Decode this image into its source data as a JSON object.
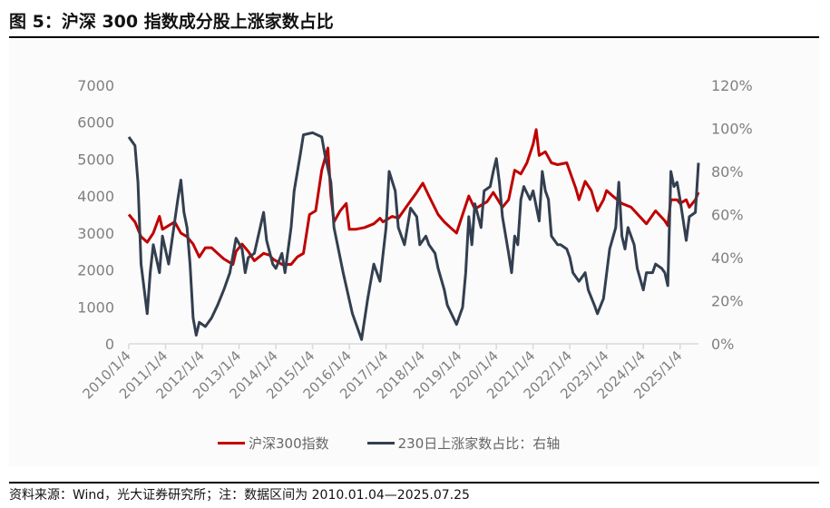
{
  "title": "图 5：沪深 300 指数成分股上涨家数占比",
  "footer": "资料来源：Wind，光大证券研究所；注：数据区间为 2010.01.04—2025.07.25",
  "chart_data": {
    "type": "line",
    "title": "",
    "left_axis": {
      "ylim": [
        0,
        7000
      ],
      "ticks": [
        "0",
        "1000",
        "2000",
        "3000",
        "4000",
        "5000",
        "6000",
        "7000"
      ]
    },
    "right_axis": {
      "ylim": [
        0,
        120
      ],
      "ticks": [
        "0%",
        "20%",
        "40%",
        "60%",
        "80%",
        "100%",
        "120%"
      ]
    },
    "x_range": [
      "2010-01",
      "2025-07"
    ],
    "x_ticks": [
      "2010/1/4",
      "2011/1/4",
      "2012/1/4",
      "2013/1/4",
      "2014/1/4",
      "2015/1/4",
      "2016/1/4",
      "2017/1/4",
      "2018/1/4",
      "2019/1/4",
      "2020/1/4",
      "2021/1/4",
      "2022/1/4",
      "2023/1/4",
      "2024/1/4",
      "2025/1/4"
    ],
    "grid": false,
    "legend_position": "bottom",
    "series": [
      {
        "name": "沪深300指数",
        "axis": "left",
        "color": "#c00000",
        "points": [
          [
            "2010-01",
            3500
          ],
          [
            "2010-03",
            3300
          ],
          [
            "2010-05",
            2900
          ],
          [
            "2010-07",
            2750
          ],
          [
            "2010-09",
            3000
          ],
          [
            "2010-11",
            3450
          ],
          [
            "2010-12",
            3100
          ],
          [
            "2011-02",
            3200
          ],
          [
            "2011-04",
            3300
          ],
          [
            "2011-06",
            3000
          ],
          [
            "2011-08",
            2900
          ],
          [
            "2011-10",
            2700
          ],
          [
            "2011-12",
            2350
          ],
          [
            "2012-02",
            2600
          ],
          [
            "2012-04",
            2600
          ],
          [
            "2012-06",
            2450
          ],
          [
            "2012-08",
            2300
          ],
          [
            "2012-11",
            2150
          ],
          [
            "2012-12",
            2500
          ],
          [
            "2013-02",
            2700
          ],
          [
            "2013-04",
            2500
          ],
          [
            "2013-06",
            2250
          ],
          [
            "2013-09",
            2450
          ],
          [
            "2013-11",
            2400
          ],
          [
            "2013-12",
            2300
          ],
          [
            "2014-03",
            2150
          ],
          [
            "2014-06",
            2150
          ],
          [
            "2014-08",
            2350
          ],
          [
            "2014-10",
            2450
          ],
          [
            "2014-12",
            3500
          ],
          [
            "2015-02",
            3600
          ],
          [
            "2015-04",
            4700
          ],
          [
            "2015-06",
            5300
          ],
          [
            "2015-07",
            4000
          ],
          [
            "2015-08",
            3300
          ],
          [
            "2015-10",
            3600
          ],
          [
            "2015-12",
            3800
          ],
          [
            "2016-01",
            3100
          ],
          [
            "2016-03",
            3100
          ],
          [
            "2016-06",
            3150
          ],
          [
            "2016-09",
            3250
          ],
          [
            "2016-11",
            3400
          ],
          [
            "2016-12",
            3300
          ],
          [
            "2017-03",
            3450
          ],
          [
            "2017-05",
            3400
          ],
          [
            "2017-08",
            3750
          ],
          [
            "2017-11",
            4100
          ],
          [
            "2018-01",
            4350
          ],
          [
            "2018-03",
            4000
          ],
          [
            "2018-06",
            3500
          ],
          [
            "2018-08",
            3300
          ],
          [
            "2018-10",
            3150
          ],
          [
            "2018-12",
            3000
          ],
          [
            "2019-02",
            3500
          ],
          [
            "2019-04",
            4000
          ],
          [
            "2019-06",
            3650
          ],
          [
            "2019-08",
            3750
          ],
          [
            "2019-10",
            3850
          ],
          [
            "2019-12",
            4100
          ],
          [
            "2020-03",
            3700
          ],
          [
            "2020-05",
            3900
          ],
          [
            "2020-07",
            4700
          ],
          [
            "2020-09",
            4600
          ],
          [
            "2020-11",
            4900
          ],
          [
            "2021-01",
            5400
          ],
          [
            "2021-02",
            5800
          ],
          [
            "2021-03",
            5100
          ],
          [
            "2021-05",
            5200
          ],
          [
            "2021-07",
            4900
          ],
          [
            "2021-09",
            4850
          ],
          [
            "2021-12",
            4900
          ],
          [
            "2022-03",
            4200
          ],
          [
            "2022-04",
            3900
          ],
          [
            "2022-06",
            4400
          ],
          [
            "2022-08",
            4150
          ],
          [
            "2022-10",
            3600
          ],
          [
            "2022-12",
            3900
          ],
          [
            "2023-01",
            4150
          ],
          [
            "2023-03",
            4000
          ],
          [
            "2023-06",
            3800
          ],
          [
            "2023-09",
            3700
          ],
          [
            "2023-12",
            3430
          ],
          [
            "2024-02",
            3250
          ],
          [
            "2024-05",
            3600
          ],
          [
            "2024-08",
            3330
          ],
          [
            "2024-09",
            3200
          ],
          [
            "2024-10",
            3900
          ],
          [
            "2024-12",
            3900
          ],
          [
            "2025-01",
            3800
          ],
          [
            "2025-03",
            3900
          ],
          [
            "2025-04",
            3700
          ],
          [
            "2025-06",
            3900
          ],
          [
            "2025-07",
            4100
          ]
        ]
      },
      {
        "name": "230日上涨家数占比：右轴",
        "axis": "right",
        "color": "#333f50",
        "points": [
          [
            "2010-01",
            96
          ],
          [
            "2010-03",
            92
          ],
          [
            "2010-04",
            75
          ],
          [
            "2010-05",
            37
          ],
          [
            "2010-07",
            14
          ],
          [
            "2010-08",
            33
          ],
          [
            "2010-09",
            46
          ],
          [
            "2010-11",
            33
          ],
          [
            "2010-12",
            50
          ],
          [
            "2011-02",
            37
          ],
          [
            "2011-05",
            67
          ],
          [
            "2011-06",
            76
          ],
          [
            "2011-07",
            61
          ],
          [
            "2011-08",
            54
          ],
          [
            "2011-09",
            37
          ],
          [
            "2011-10",
            12
          ],
          [
            "2011-11",
            4
          ],
          [
            "2011-12",
            10
          ],
          [
            "2012-02",
            8
          ],
          [
            "2012-04",
            12
          ],
          [
            "2012-06",
            18
          ],
          [
            "2012-08",
            25
          ],
          [
            "2012-10",
            33
          ],
          [
            "2012-12",
            49
          ],
          [
            "2013-02",
            44
          ],
          [
            "2013-03",
            33
          ],
          [
            "2013-04",
            40
          ],
          [
            "2013-06",
            42
          ],
          [
            "2013-09",
            61
          ],
          [
            "2013-10",
            48
          ],
          [
            "2013-12",
            37
          ],
          [
            "2014-01",
            35
          ],
          [
            "2014-03",
            42
          ],
          [
            "2014-04",
            33
          ],
          [
            "2014-06",
            54
          ],
          [
            "2014-07",
            71
          ],
          [
            "2014-09",
            88
          ],
          [
            "2014-10",
            97
          ],
          [
            "2015-01",
            98
          ],
          [
            "2015-04",
            96
          ],
          [
            "2015-05",
            88
          ],
          [
            "2015-07",
            75
          ],
          [
            "2015-08",
            54
          ],
          [
            "2015-11",
            33
          ],
          [
            "2016-02",
            14
          ],
          [
            "2016-05",
            2
          ],
          [
            "2016-07",
            21
          ],
          [
            "2016-08",
            29
          ],
          [
            "2016-09",
            37
          ],
          [
            "2016-11",
            29
          ],
          [
            "2017-01",
            54
          ],
          [
            "2017-02",
            80
          ],
          [
            "2017-04",
            71
          ],
          [
            "2017-05",
            54
          ],
          [
            "2017-07",
            46
          ],
          [
            "2017-09",
            63
          ],
          [
            "2017-11",
            59
          ],
          [
            "2017-12",
            46
          ],
          [
            "2018-02",
            50
          ],
          [
            "2018-03",
            46
          ],
          [
            "2018-05",
            42
          ],
          [
            "2018-06",
            35
          ],
          [
            "2018-08",
            25
          ],
          [
            "2018-09",
            18
          ],
          [
            "2018-11",
            12
          ],
          [
            "2018-12",
            9
          ],
          [
            "2019-02",
            17
          ],
          [
            "2019-03",
            33
          ],
          [
            "2019-04",
            59
          ],
          [
            "2019-05",
            46
          ],
          [
            "2019-06",
            65
          ],
          [
            "2019-08",
            54
          ],
          [
            "2019-09",
            71
          ],
          [
            "2019-11",
            73
          ],
          [
            "2019-12",
            80
          ],
          [
            "2020-01",
            86
          ],
          [
            "2020-02",
            75
          ],
          [
            "2020-03",
            59
          ],
          [
            "2020-05",
            42
          ],
          [
            "2020-06",
            33
          ],
          [
            "2020-07",
            50
          ],
          [
            "2020-08",
            46
          ],
          [
            "2020-09",
            67
          ],
          [
            "2020-10",
            73
          ],
          [
            "2020-12",
            67
          ],
          [
            "2021-01",
            71
          ],
          [
            "2021-03",
            57
          ],
          [
            "2021-04",
            80
          ],
          [
            "2021-05",
            71
          ],
          [
            "2021-06",
            67
          ],
          [
            "2021-07",
            50
          ],
          [
            "2021-09",
            46
          ],
          [
            "2021-10",
            46
          ],
          [
            "2021-12",
            44
          ],
          [
            "2022-01",
            40
          ],
          [
            "2022-02",
            33
          ],
          [
            "2022-04",
            29
          ],
          [
            "2022-06",
            33
          ],
          [
            "2022-07",
            25
          ],
          [
            "2022-09",
            18
          ],
          [
            "2022-10",
            14
          ],
          [
            "2022-12",
            21
          ],
          [
            "2023-02",
            44
          ],
          [
            "2023-04",
            54
          ],
          [
            "2023-05",
            75
          ],
          [
            "2023-06",
            50
          ],
          [
            "2023-07",
            44
          ],
          [
            "2023-08",
            54
          ],
          [
            "2023-10",
            46
          ],
          [
            "2023-11",
            35
          ],
          [
            "2024-01",
            25
          ],
          [
            "2024-02",
            33
          ],
          [
            "2024-04",
            33
          ],
          [
            "2024-05",
            37
          ],
          [
            "2024-07",
            35
          ],
          [
            "2024-08",
            33
          ],
          [
            "2024-09",
            27
          ],
          [
            "2024-10",
            80
          ],
          [
            "2024-11",
            73
          ],
          [
            "2024-12",
            75
          ],
          [
            "2025-01",
            67
          ],
          [
            "2025-03",
            48
          ],
          [
            "2025-04",
            59
          ],
          [
            "2025-06",
            61
          ],
          [
            "2025-07",
            84
          ]
        ]
      }
    ]
  }
}
